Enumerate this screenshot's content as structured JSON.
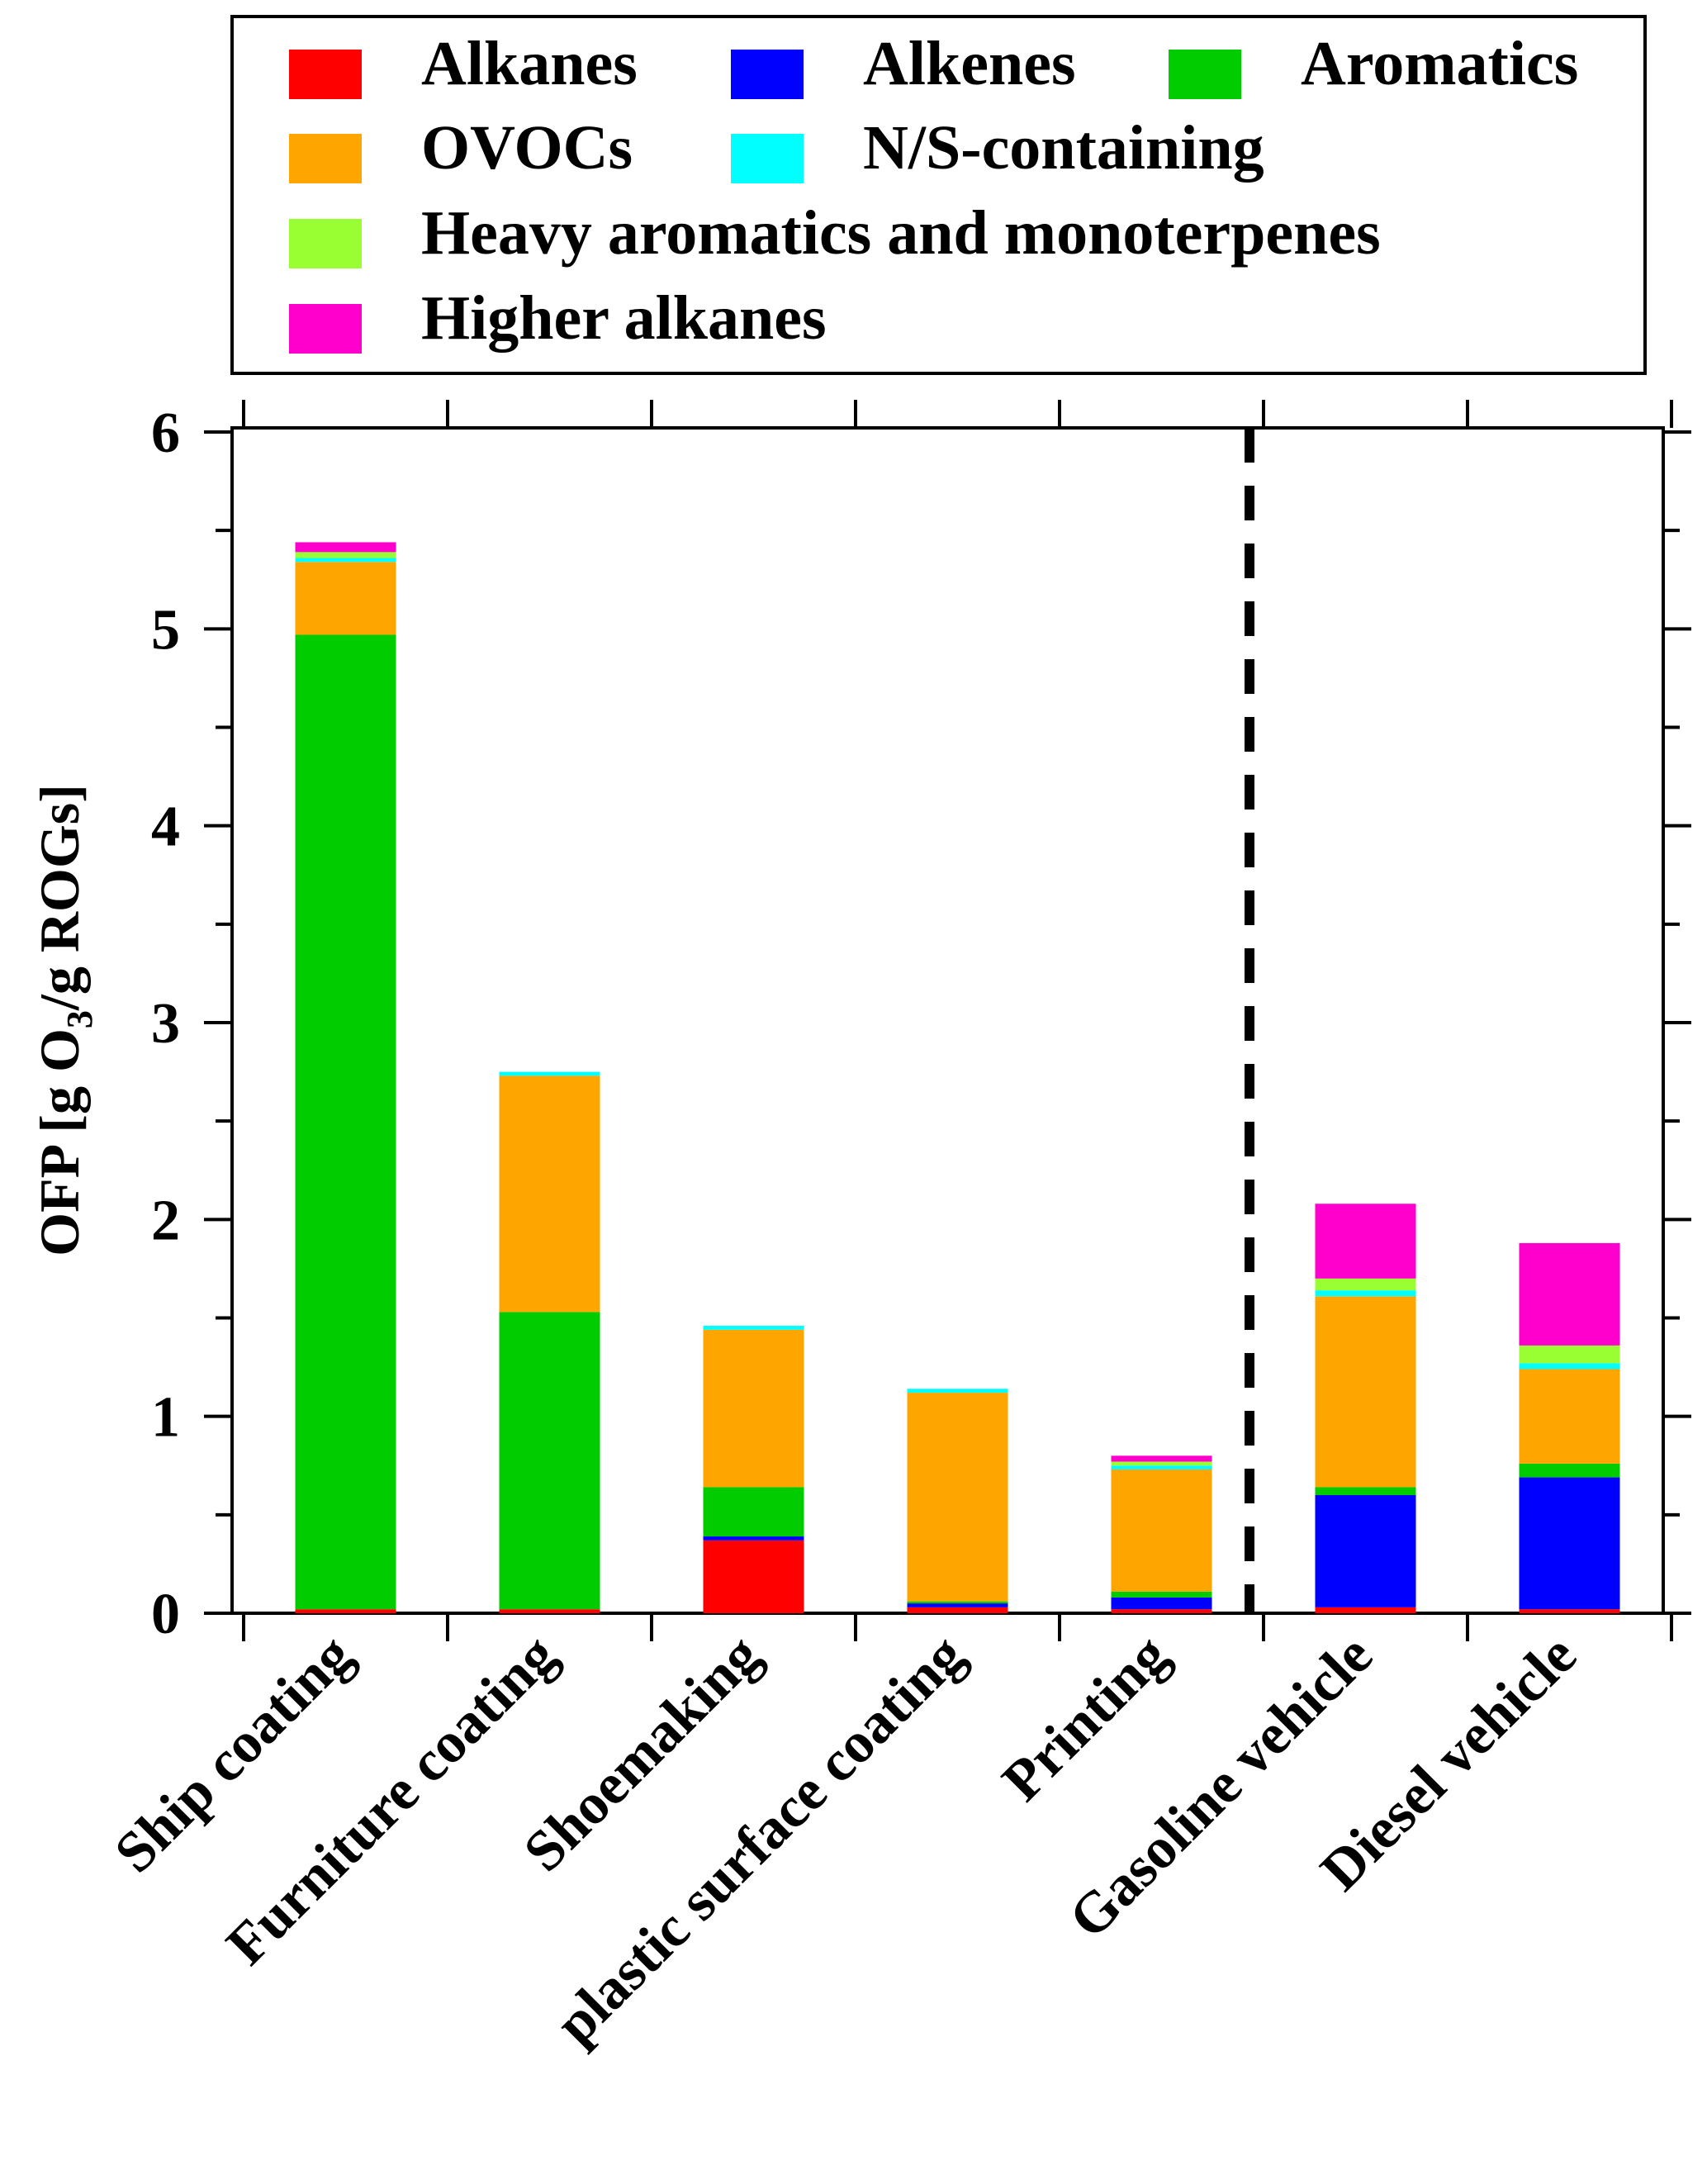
{
  "chart_data": {
    "type": "bar",
    "stacked": true,
    "ylabel": "OFP [g O₃/g ROGs]",
    "ylabel_parts": [
      "OFP [g O",
      "3",
      "/g ROGs]"
    ],
    "ylim": [
      0,
      6
    ],
    "yticks": [
      0,
      1,
      2,
      3,
      4,
      5,
      6
    ],
    "y_tick_labels": [
      "0",
      "1",
      "2",
      "3",
      "4",
      "5",
      "6"
    ],
    "grid": false,
    "legend_position": "top",
    "categories": [
      "Ship coating",
      "Furniture coating",
      "Shoemaking",
      "plastic surface coating",
      "Printing",
      "Gasoline vehicle",
      "Diesel vehicle"
    ],
    "annotation": "dashed vertical separator between Printing and Gasoline vehicle",
    "series": [
      {
        "name": "Alkanes",
        "color": "#ff0000",
        "values": [
          0.02,
          0.02,
          0.37,
          0.03,
          0.02,
          0.03,
          0.02
        ]
      },
      {
        "name": "Alkenes",
        "color": "#0000ff",
        "values": [
          0.0,
          0.0,
          0.02,
          0.02,
          0.06,
          0.57,
          0.67
        ]
      },
      {
        "name": "Aromatics",
        "color": "#00cc00",
        "values": [
          4.95,
          1.51,
          0.25,
          0.01,
          0.03,
          0.04,
          0.07
        ]
      },
      {
        "name": "OVOCs",
        "color": "#ffa500",
        "values": [
          0.37,
          1.2,
          0.8,
          1.06,
          0.62,
          0.97,
          0.48
        ]
      },
      {
        "name": "N/S-containing",
        "color": "#00ffff",
        "values": [
          0.02,
          0.02,
          0.02,
          0.02,
          0.02,
          0.03,
          0.03
        ]
      },
      {
        "name": "Heavy aromatics and monoterpenes",
        "color": "#99ff33",
        "values": [
          0.03,
          0.0,
          0.0,
          0.0,
          0.02,
          0.06,
          0.09
        ]
      },
      {
        "name": "Higher alkanes",
        "color": "#ff00cc",
        "values": [
          0.05,
          0.0,
          0.0,
          0.0,
          0.03,
          0.38,
          0.52
        ]
      }
    ]
  }
}
